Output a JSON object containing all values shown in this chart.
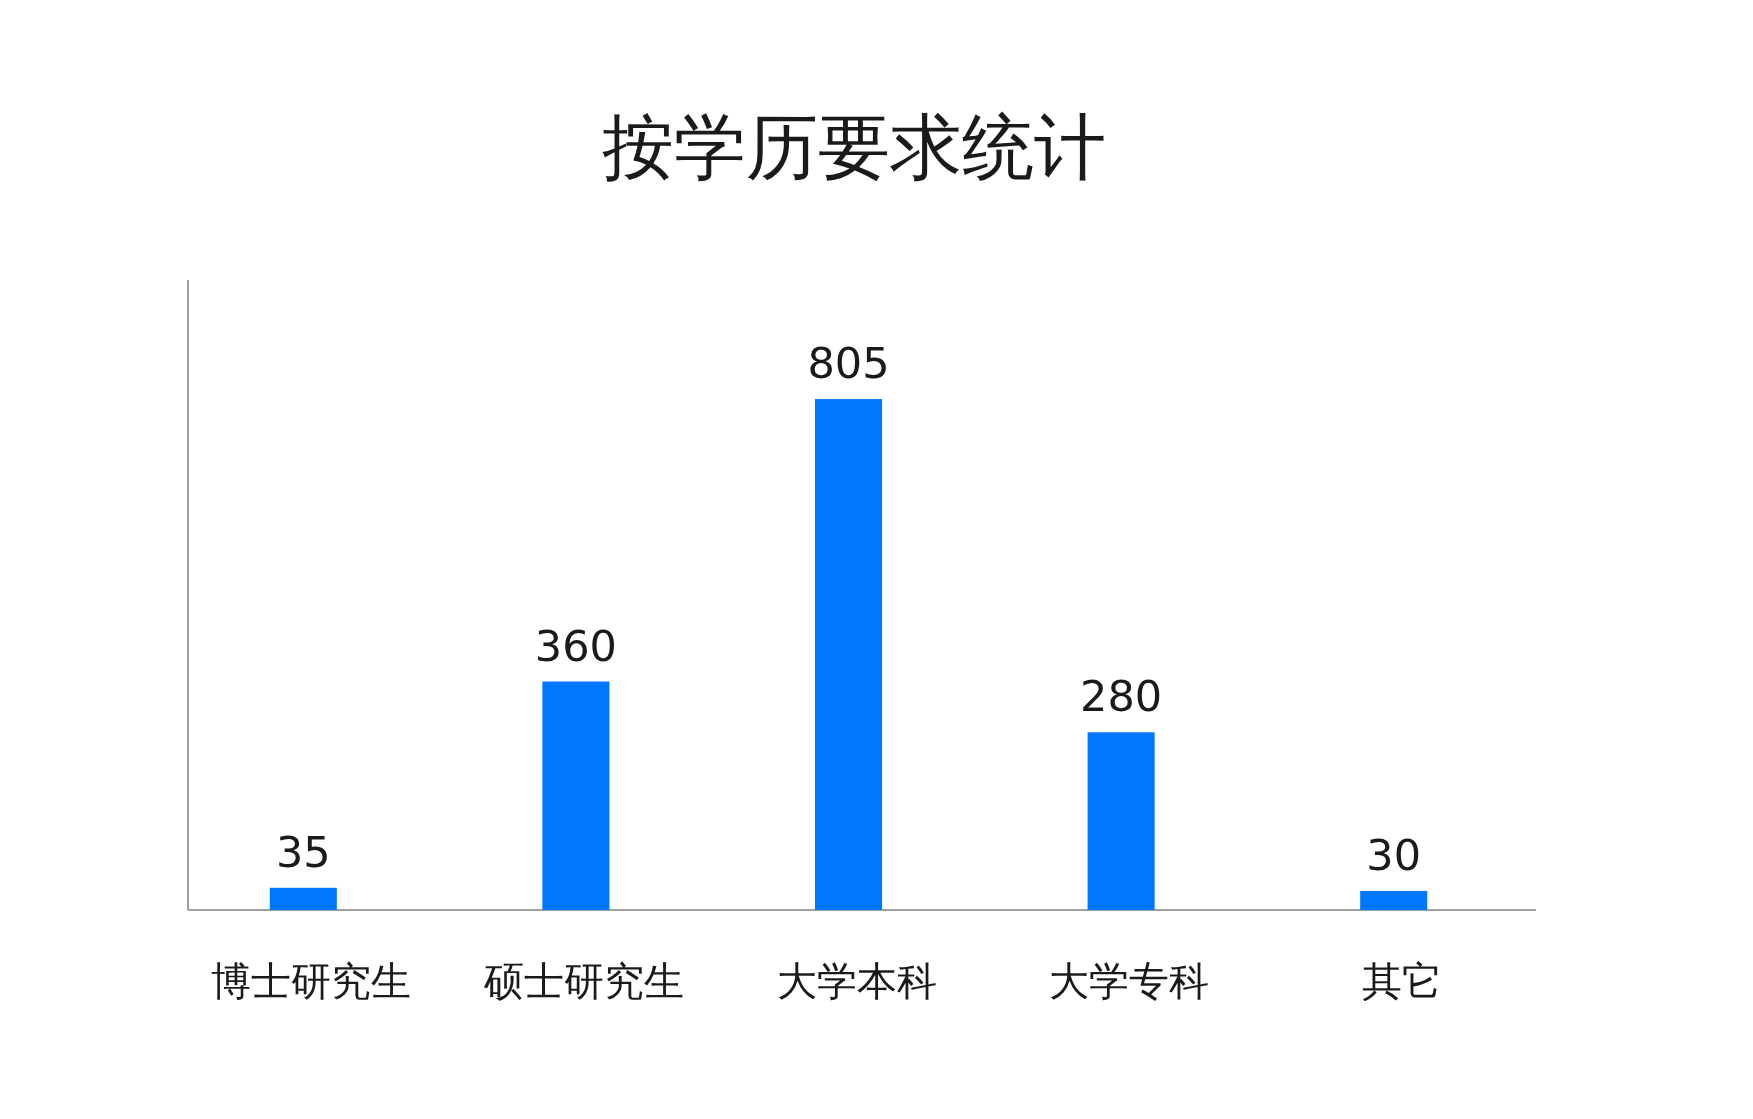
{
  "chart_data": {
    "type": "bar",
    "title": "按学历要求统计",
    "categories": [
      "博士研究生",
      "硕士研究生",
      "大学本科",
      "大学专科",
      "其它"
    ],
    "values": [
      35,
      360,
      805,
      280,
      30
    ],
    "color": "#0077ff",
    "data_labels": true,
    "tick_labels": "x"
  }
}
